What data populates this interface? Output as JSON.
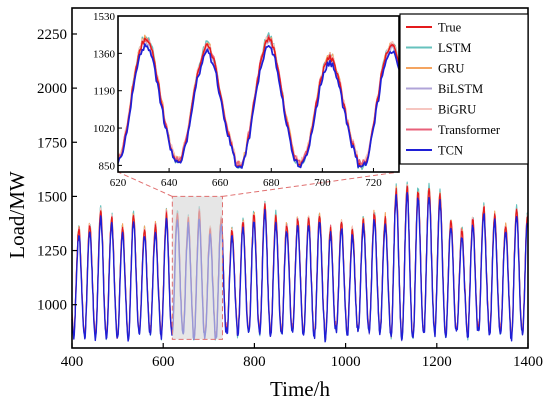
{
  "colors": {
    "True": "#e41a1c",
    "LSTM": "#66c2bd",
    "GRU": "#f4a460",
    "BiLSTM": "#b0a4d8",
    "BiGRU": "#f6c6c0",
    "Transformer": "#e8607a",
    "TCN": "#1f1fd6",
    "zoom_box_fill": "#d9d9d9",
    "zoom_box_edge": "#e07070"
  },
  "chart_data": [
    {
      "type": "line",
      "xlabel": "Time/h",
      "ylabel": "Load/MW",
      "xlim": [
        400,
        1400
      ],
      "ylim": [
        800,
        2370
      ],
      "xticks": [
        400,
        600,
        800,
        1000,
        1200,
        1400
      ],
      "yticks": [
        1000,
        1250,
        1500,
        1750,
        2000,
        2250
      ],
      "period_hours": 24,
      "series": [
        {
          "name": "True",
          "daily_peak_range_MW": [
            1300,
            1560
          ],
          "daily_trough_range_MW": [
            850,
            900
          ]
        },
        {
          "name": "LSTM"
        },
        {
          "name": "GRU"
        },
        {
          "name": "BiLSTM"
        },
        {
          "name": "BiGRU"
        },
        {
          "name": "Transformer"
        },
        {
          "name": "TCN"
        }
      ],
      "zoom_region": {
        "x": [
          620,
          730
        ],
        "y": [
          840,
          1500
        ]
      },
      "grid": false,
      "legend": "inside-right (inset)"
    },
    {
      "type": "line",
      "inset": true,
      "xlim": [
        620,
        730
      ],
      "ylim": [
        820,
        1530
      ],
      "xticks": [
        620,
        640,
        660,
        680,
        700,
        720
      ],
      "yticks": [
        850,
        1020,
        1190,
        1360,
        1530
      ],
      "peaks": [
        {
          "x": 625,
          "True": 1455,
          "LSTM": 1475,
          "TCN": 1380
        },
        {
          "x": 649,
          "True": 1475,
          "LSTM": 1500,
          "TCN": 1440
        },
        {
          "x": 673,
          "True": 1470,
          "LSTM": 1495,
          "TCN": 1440
        },
        {
          "x": 697,
          "True": 1460,
          "LSTM": 1495,
          "TCN": 1440
        },
        {
          "x": 721,
          "True": 1460,
          "LSTM": 1490,
          "TCN": 1430
        }
      ],
      "troughs": [
        {
          "x": 638,
          "True": 880,
          "TCN": 865
        },
        {
          "x": 662,
          "True": 900,
          "TCN": 875
        },
        {
          "x": 686,
          "True": 890,
          "TCN": 870
        },
        {
          "x": 710,
          "True": 880,
          "TCN": 868
        }
      ],
      "legend_entries": [
        "True",
        "LSTM",
        "GRU",
        "BiLSTM",
        "BiGRU",
        "Transformer",
        "TCN"
      ]
    }
  ]
}
